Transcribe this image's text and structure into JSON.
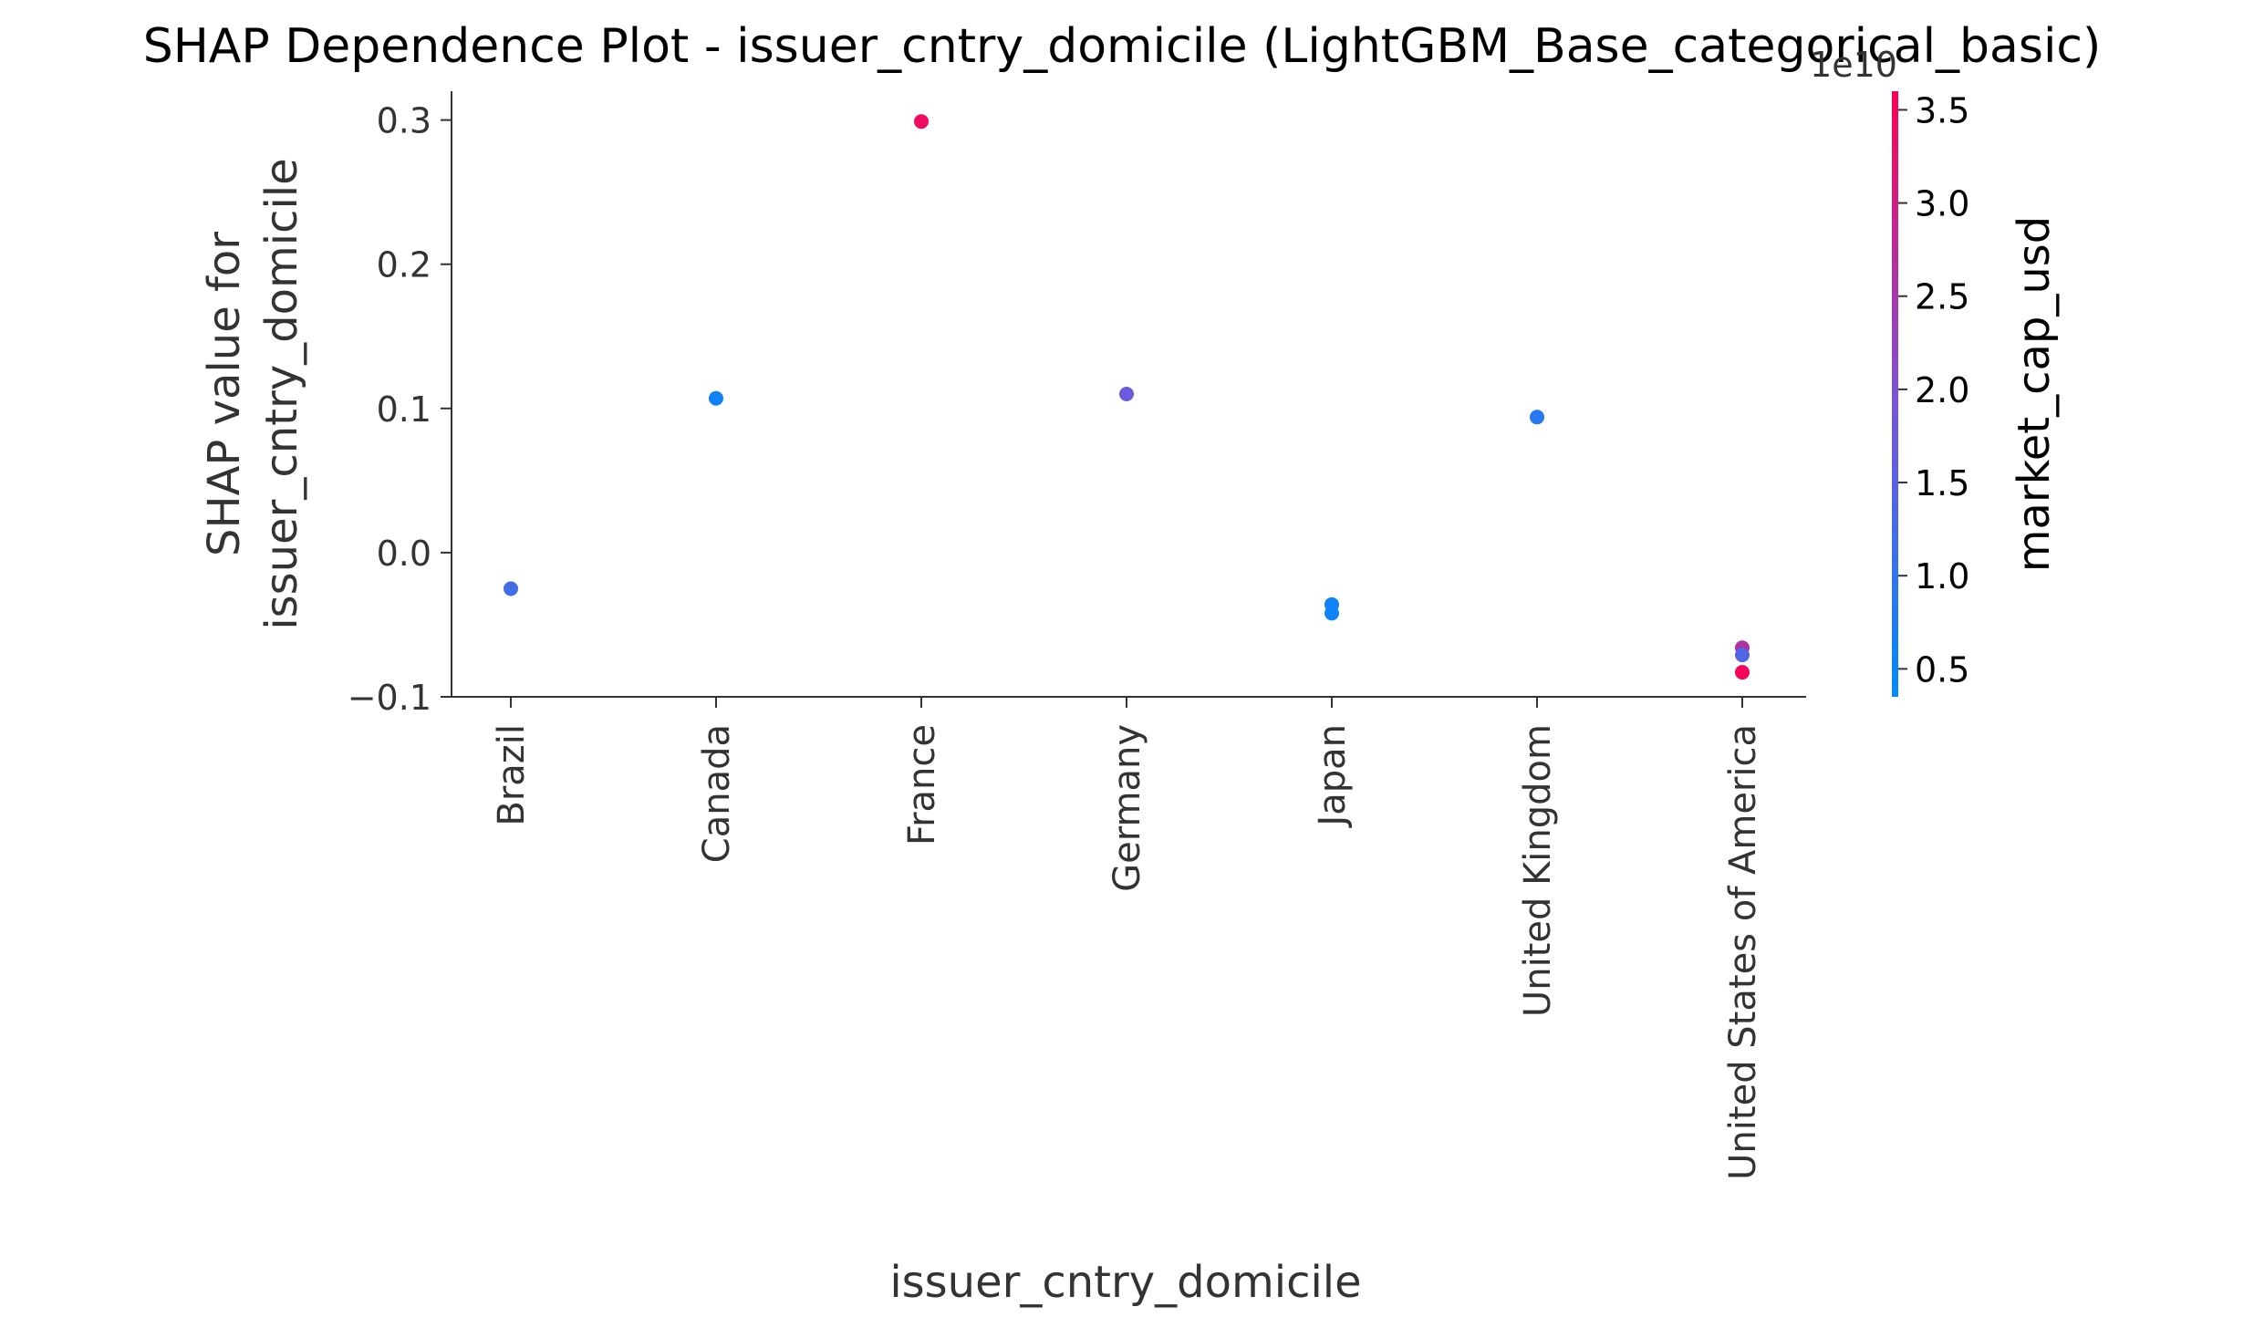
{
  "chart_data": {
    "type": "scatter",
    "title": "SHAP Dependence Plot - issuer_cntry_domicile (LightGBM_Base_categorical_basic)",
    "xlabel": "issuer_cntry_domicile",
    "ylabel_lines": [
      "SHAP value for",
      "issuer_cntry_domicile"
    ],
    "categories": [
      "Brazil",
      "Canada",
      "France",
      "Germany",
      "Japan",
      "United Kingdom",
      "United States of America"
    ],
    "ylim": [
      -0.1,
      0.32
    ],
    "yticks": [
      -0.1,
      0.0,
      0.1,
      0.2,
      0.3
    ],
    "ytick_labels": [
      "−0.1",
      "0.0",
      "0.1",
      "0.2",
      "0.3"
    ],
    "points": [
      {
        "category": "Brazil",
        "y": -0.025,
        "color_value": 1.2
      },
      {
        "category": "Canada",
        "y": 0.107,
        "color_value": 0.55
      },
      {
        "category": "France",
        "y": 0.299,
        "color_value": 3.4
      },
      {
        "category": "Germany",
        "y": 0.11,
        "color_value": 1.75
      },
      {
        "category": "Japan",
        "y": -0.036,
        "color_value": 0.55
      },
      {
        "category": "Japan",
        "y": -0.042,
        "color_value": 0.55
      },
      {
        "category": "United Kingdom",
        "y": 0.094,
        "color_value": 0.85
      },
      {
        "category": "United States of America",
        "y": -0.066,
        "color_value": 2.6
      },
      {
        "category": "United States of America",
        "y": -0.071,
        "color_value": 1.4
      },
      {
        "category": "United States of America",
        "y": -0.083,
        "color_value": 3.5
      }
    ],
    "colorbar": {
      "label": "market_cap_usd",
      "multiplier": "1e10",
      "range": [
        0.35,
        3.6
      ],
      "ticks": [
        0.5,
        1.0,
        1.5,
        2.0,
        2.5,
        3.0,
        3.5
      ],
      "tick_labels": [
        "0.5",
        "1.0",
        "1.5",
        "2.0",
        "2.5",
        "3.0",
        "3.5"
      ],
      "low_color": "#008afb",
      "mid_color": "#7c52d6",
      "high_color": "#ff0052"
    },
    "grid": false,
    "legend": "colorbar-right"
  }
}
